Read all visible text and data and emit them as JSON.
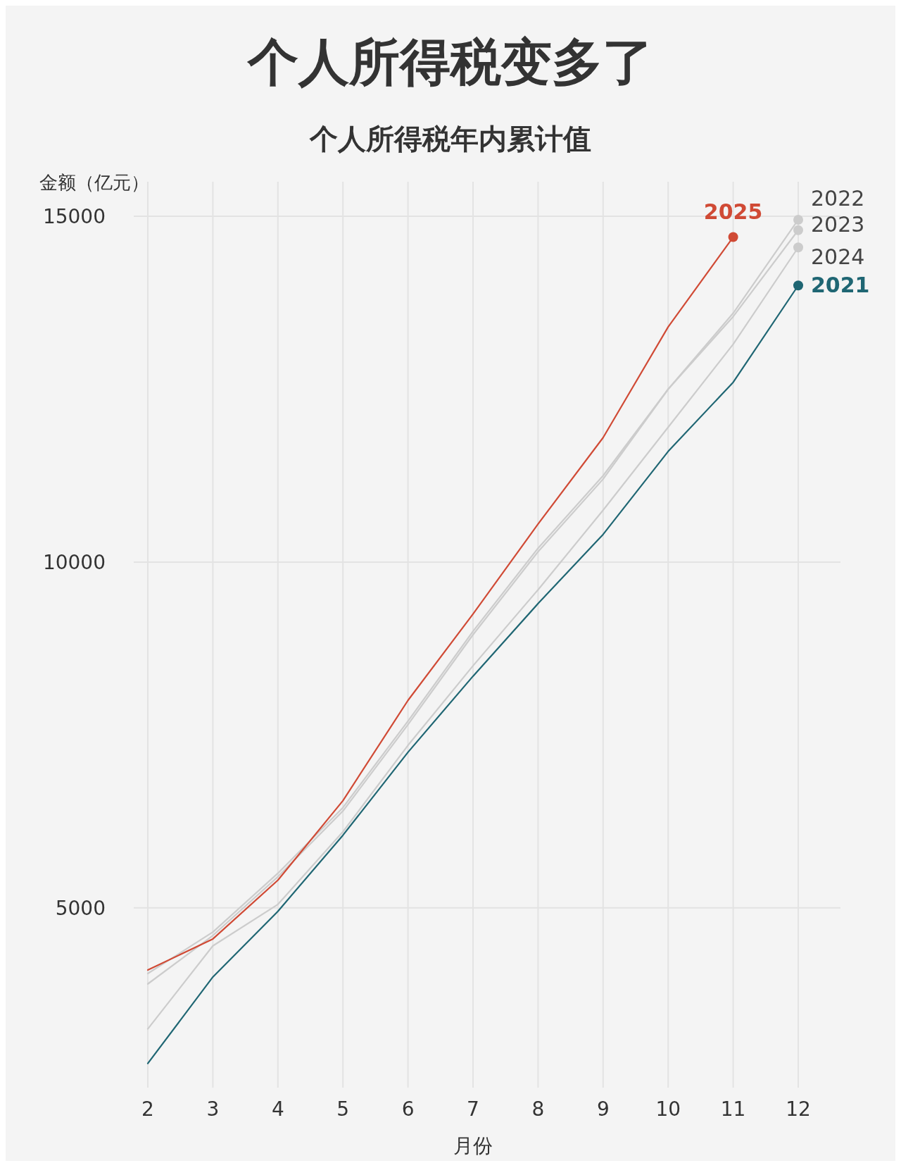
{
  "chart_data": {
    "type": "line",
    "title": "个人所得税变多了",
    "subtitle": "个人所得税年内累计值",
    "xlabel": "月份",
    "ylabel": "金额（亿元）",
    "x": [
      2,
      3,
      4,
      5,
      6,
      7,
      8,
      9,
      10,
      11,
      12
    ],
    "xlim": [
      2,
      12
    ],
    "xticks": [
      2,
      3,
      4,
      5,
      6,
      7,
      8,
      9,
      10,
      11,
      12
    ],
    "ylim": [
      2400,
      15500
    ],
    "yticks": [
      5000,
      10000,
      15000
    ],
    "grid": true,
    "series": [
      {
        "name": "2022",
        "color": "#cccccc",
        "values": [
          4050,
          4650,
          5500,
          6450,
          7700,
          9000,
          10200,
          11250,
          12500,
          13600,
          14950
        ]
      },
      {
        "name": "2023",
        "color": "#cccccc",
        "values": [
          3900,
          4600,
          5450,
          6400,
          7650,
          8950,
          10150,
          11200,
          12500,
          13550,
          14800
        ]
      },
      {
        "name": "2024",
        "color": "#cccccc",
        "values": [
          3250,
          4450,
          5050,
          6100,
          7350,
          8500,
          9600,
          10750,
          11950,
          13150,
          14550
        ]
      },
      {
        "name": "2021",
        "color": "#1f6673",
        "values": [
          2750,
          4000,
          4950,
          6050,
          7250,
          8350,
          9400,
          10400,
          11600,
          12600,
          14000
        ]
      },
      {
        "name": "2025",
        "color": "#d04a35",
        "values": [
          4100,
          4550,
          5400,
          6550,
          8000,
          9250,
          10550,
          11800,
          13400,
          14700,
          null
        ]
      }
    ]
  }
}
